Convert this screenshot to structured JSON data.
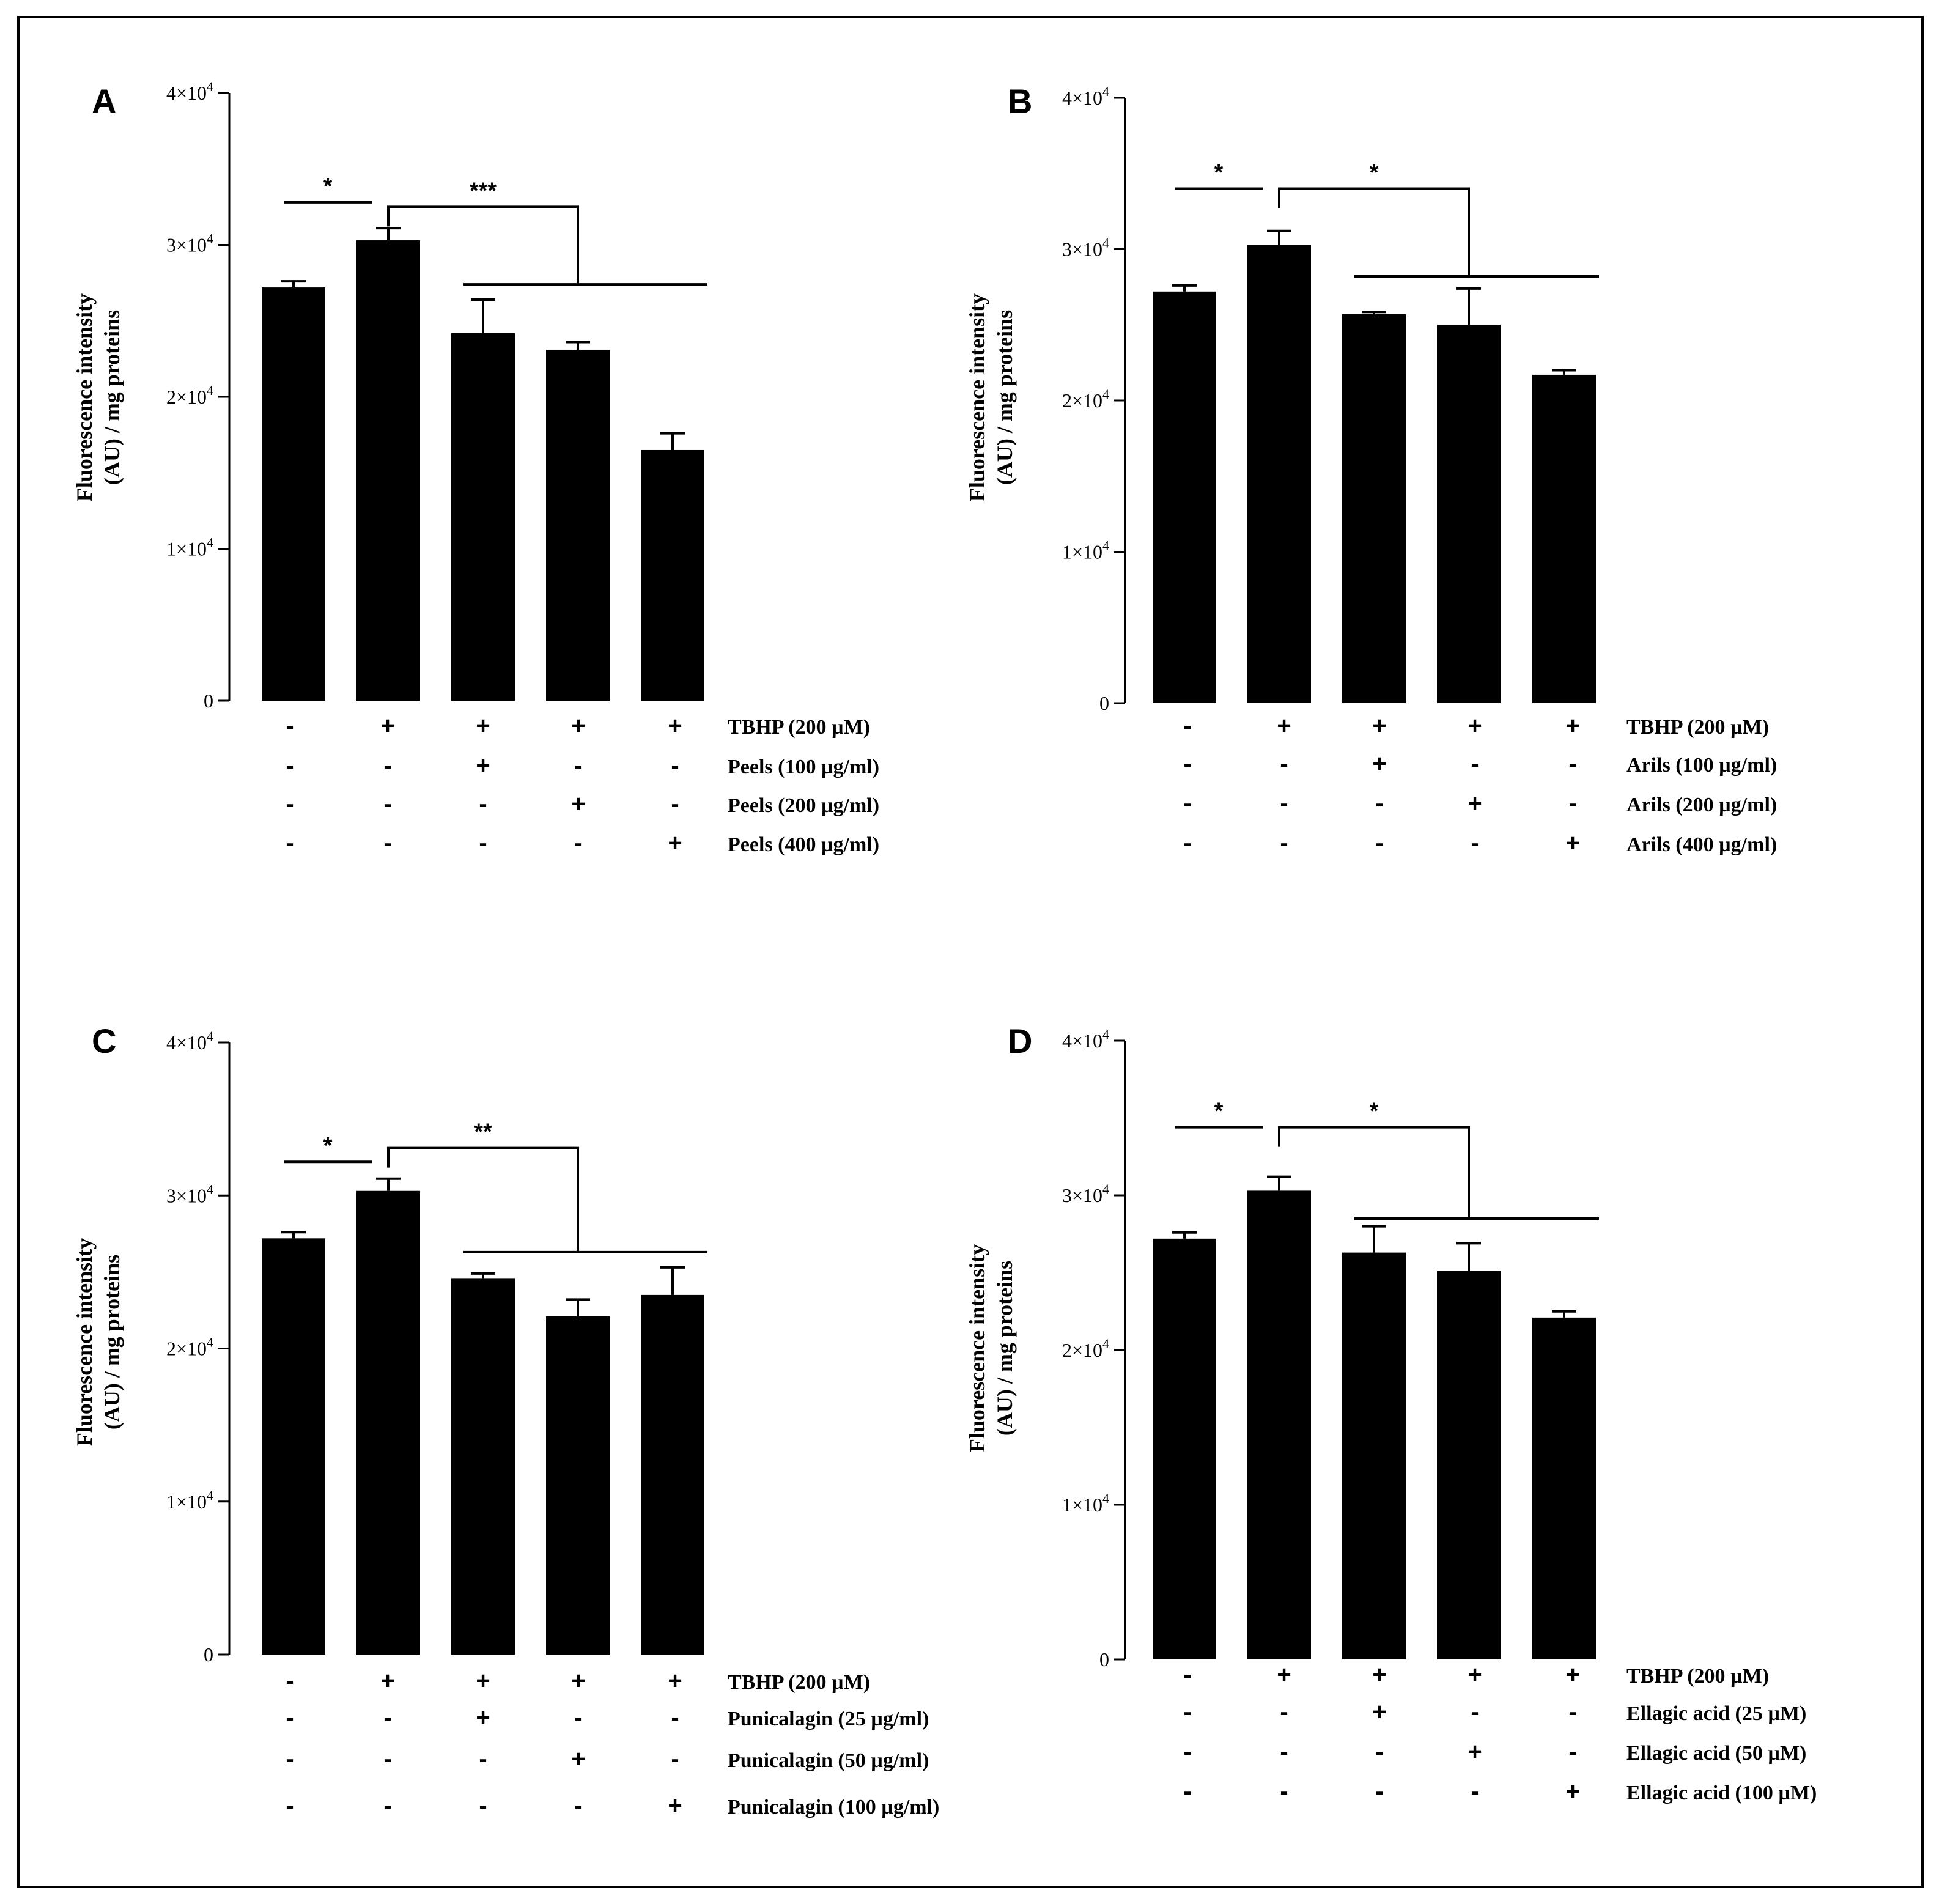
{
  "chart_data": [
    {
      "panel": "A",
      "type": "bar",
      "ylabel_line1": "Fluorescence intensity",
      "ylabel_line2": "(AU) / mg proteins",
      "ylim": [
        0,
        40000
      ],
      "yticks": [
        {
          "value": 0,
          "mantissa": "0"
        },
        {
          "value": 10000,
          "mantissa": "1×10",
          "exp": "4"
        },
        {
          "value": 20000,
          "mantissa": "2×10",
          "exp": "4"
        },
        {
          "value": 30000,
          "mantissa": "3×10",
          "exp": "4"
        },
        {
          "value": 40000,
          "mantissa": "4×10",
          "exp": "4"
        }
      ],
      "values": [
        27200,
        30300,
        24200,
        23100,
        16500
      ],
      "errors": [
        400,
        800,
        2200,
        500,
        1100
      ],
      "treatments": [
        {
          "label": "TBHP (200 µM)",
          "signs": [
            "-",
            "+",
            "+",
            "+",
            "+"
          ]
        },
        {
          "label": "Peels (100 µg/ml)",
          "signs": [
            "-",
            "-",
            "+",
            "-",
            "-"
          ]
        },
        {
          "label": "Peels (200 µg/ml)",
          "signs": [
            "-",
            "-",
            "-",
            "+",
            "-"
          ]
        },
        {
          "label": "Peels (400 µg/ml)",
          "signs": [
            "-",
            "-",
            "-",
            "-",
            "+"
          ]
        }
      ],
      "sig_control": "*",
      "sig_group": "***",
      "sig_y_control": 32800,
      "sig_y_bracket": 32500,
      "sig_y_group": 27400
    },
    {
      "panel": "B",
      "type": "bar",
      "ylabel_line1": "Fluorescence intensity",
      "ylabel_line2": "(AU) / mg proteins",
      "ylim": [
        0,
        40000
      ],
      "yticks": [
        {
          "value": 0,
          "mantissa": "0"
        },
        {
          "value": 10000,
          "mantissa": "1×10",
          "exp": "4"
        },
        {
          "value": 20000,
          "mantissa": "2×10",
          "exp": "4"
        },
        {
          "value": 30000,
          "mantissa": "3×10",
          "exp": "4"
        },
        {
          "value": 40000,
          "mantissa": "4×10",
          "exp": "4"
        }
      ],
      "values": [
        27200,
        30300,
        25700,
        25000,
        21700
      ],
      "errors": [
        400,
        900,
        150,
        2400,
        300
      ],
      "treatments": [
        {
          "label": "TBHP (200 µM)",
          "signs": [
            "-",
            "+",
            "+",
            "+",
            "+"
          ]
        },
        {
          "label": "Arils (100 µg/ml)",
          "signs": [
            "-",
            "-",
            "+",
            "-",
            "-"
          ]
        },
        {
          "label": "Arils (200 µg/ml)",
          "signs": [
            "-",
            "-",
            "-",
            "+",
            "-"
          ]
        },
        {
          "label": "Arils (400 µg/ml)",
          "signs": [
            "-",
            "-",
            "-",
            "-",
            "+"
          ]
        }
      ],
      "sig_control": "*",
      "sig_group": "*",
      "sig_y_control": 34000,
      "sig_y_bracket": 34000,
      "sig_y_group": 28200
    },
    {
      "panel": "C",
      "type": "bar",
      "ylabel_line1": "Fluorescence intensity",
      "ylabel_line2": "(AU) / mg proteins",
      "ylim": [
        0,
        40000
      ],
      "yticks": [
        {
          "value": 0,
          "mantissa": "0"
        },
        {
          "value": 10000,
          "mantissa": "1×10",
          "exp": "4"
        },
        {
          "value": 20000,
          "mantissa": "2×10",
          "exp": "4"
        },
        {
          "value": 30000,
          "mantissa": "3×10",
          "exp": "4"
        },
        {
          "value": 40000,
          "mantissa": "4×10",
          "exp": "4"
        }
      ],
      "values": [
        27200,
        30300,
        24600,
        22100,
        23500
      ],
      "errors": [
        400,
        800,
        300,
        1100,
        1800
      ],
      "treatments": [
        {
          "label": "TBHP (200 µM)",
          "signs": [
            "-",
            "+",
            "+",
            "+",
            "+"
          ]
        },
        {
          "label": "Punicalagin (25 µg/ml)",
          "signs": [
            "-",
            "-",
            "+",
            "-",
            "-"
          ]
        },
        {
          "label": "Punicalagin (50 µg/ml)",
          "signs": [
            "-",
            "-",
            "-",
            "+",
            "-"
          ]
        },
        {
          "label": "Punicalagin (100 µg/ml)",
          "signs": [
            "-",
            "-",
            "-",
            "-",
            "+"
          ]
        }
      ],
      "sig_control": "*",
      "sig_group": "**",
      "sig_y_control": 32200,
      "sig_y_bracket": 33100,
      "sig_y_group": 26300
    },
    {
      "panel": "D",
      "type": "bar",
      "ylabel_line1": "Fluorescence intensity",
      "ylabel_line2": "(AU) / mg proteins",
      "ylim": [
        0,
        40000
      ],
      "yticks": [
        {
          "value": 0,
          "mantissa": "0"
        },
        {
          "value": 10000,
          "mantissa": "1×10",
          "exp": "4"
        },
        {
          "value": 20000,
          "mantissa": "2×10",
          "exp": "4"
        },
        {
          "value": 30000,
          "mantissa": "3×10",
          "exp": "4"
        },
        {
          "value": 40000,
          "mantissa": "4×10",
          "exp": "4"
        }
      ],
      "values": [
        27200,
        30300,
        26300,
        25100,
        22100
      ],
      "errors": [
        400,
        900,
        1700,
        1800,
        400
      ],
      "treatments": [
        {
          "label": "TBHP (200 µM)",
          "signs": [
            "-",
            "+",
            "+",
            "+",
            "+"
          ]
        },
        {
          "label": "Ellagic acid (25 µM)",
          "signs": [
            "-",
            "-",
            "+",
            "-",
            "-"
          ]
        },
        {
          "label": "Ellagic acid (50 µM)",
          "signs": [
            "-",
            "-",
            "-",
            "+",
            "-"
          ]
        },
        {
          "label": "Ellagic acid (100 µM)",
          "signs": [
            "-",
            "-",
            "-",
            "-",
            "+"
          ]
        }
      ],
      "sig_control": "*",
      "sig_group": "*",
      "sig_y_control": 34400,
      "sig_y_bracket": 34400,
      "sig_y_group": 28500
    }
  ]
}
